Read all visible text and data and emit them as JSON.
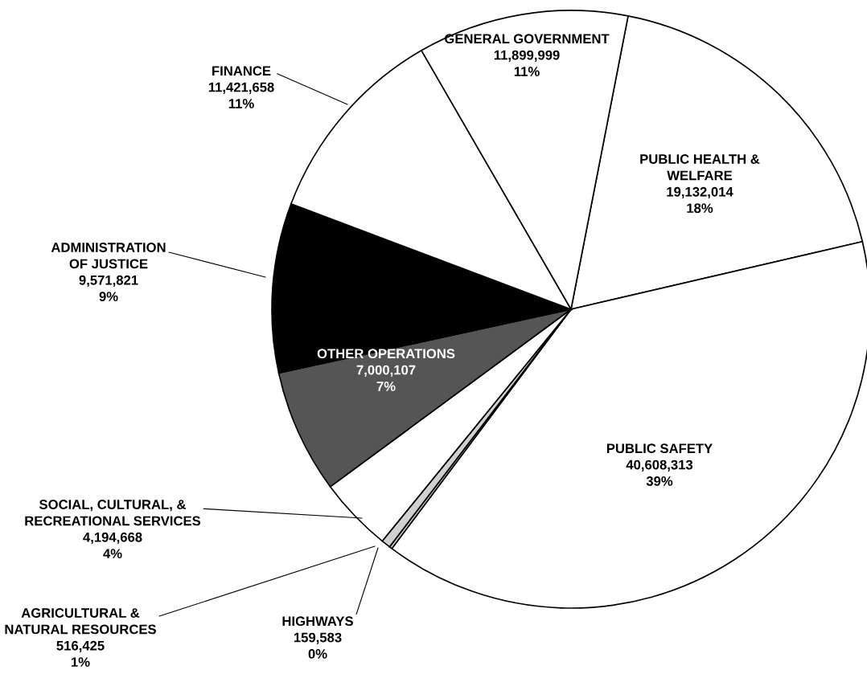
{
  "chart_data": {
    "type": "pie",
    "categories": [
      "PUBLIC HEALTH &\nWELFARE",
      "PUBLIC SAFETY",
      "HIGHWAYS",
      "AGRICULTURAL &\nNATURAL RESOURCES",
      "SOCIAL, CULTURAL, &\nRECREATIONAL SERVICES",
      "OTHER OPERATIONS",
      "ADMINISTRATION\nOF JUSTICE",
      "FINANCE",
      "GENERAL GOVERNMENT"
    ],
    "values": [
      19132014,
      40608313,
      159583,
      516425,
      4194668,
      7000107,
      9571821,
      11421658,
      11899999
    ],
    "value_labels": [
      "19,132,014\n18%",
      "40,608,313\n39%",
      "159,583\n0%",
      "516,425\n1%",
      "4,194,668\n4%",
      "7,000,107\n7%",
      "9,571,821\n9%",
      "11,421,658\n11%",
      "11,899,999\n11%"
    ],
    "colors": [
      "#ffffff",
      "#ffffff",
      "#c8c8c8",
      "#d0d0d0",
      "#ffffff",
      "#555555",
      "#000000",
      "#ffffff",
      "#ffffff"
    ]
  }
}
